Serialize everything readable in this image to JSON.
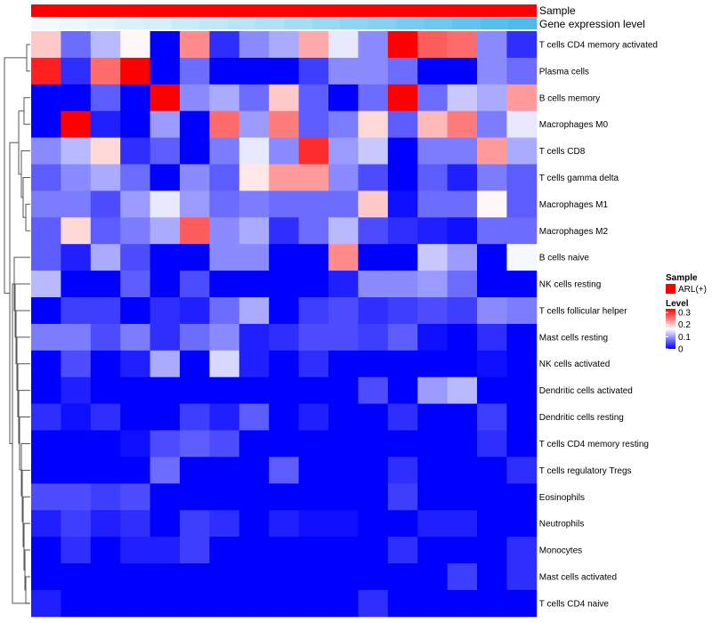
{
  "chart_data": {
    "type": "heatmap",
    "title": "",
    "annotations": {
      "sample_label": "Sample",
      "gene_label": "Gene expression level",
      "sample_color": "#ff0000",
      "gene_colors": [
        "#f2fafd",
        "#ecf8fc",
        "#e4f5fb",
        "#dcf2fa",
        "#d3eff9",
        "#caecf8",
        "#c1e8f7",
        "#b7e5f6",
        "#aee1f5",
        "#a4ddf4",
        "#99d9f3",
        "#8fd5f2",
        "#84d1f1",
        "#79ccef",
        "#6ec8ee",
        "#63c3ec",
        "#58bfeb",
        "#4dbaea"
      ]
    },
    "rows": [
      "T cells CD4 memory activated",
      "Plasma cells",
      "B cells memory",
      "Macrophages M0",
      "T cells CD8",
      "T cells gamma delta",
      "Macrophages M1",
      "Macrophages M2",
      "B cells naive",
      "NK cells resting",
      "T cells follicular helper",
      "Mast cells resting",
      "NK cells activated",
      "Dendritic cells activated",
      "Dendritic cells resting",
      "T cells CD4 memory resting",
      "T cells regulatory  Tregs",
      "Eosinophils",
      "Neutrophils",
      "Monocytes",
      "Mast cells activated",
      "T cells CD4 naive"
    ],
    "values": [
      [
        0.2,
        0.07,
        0.12,
        0.17,
        0.0,
        0.24,
        0.03,
        0.09,
        0.11,
        0.22,
        0.15,
        0.09,
        0.33,
        0.27,
        0.26,
        0.09,
        0.03
      ],
      [
        0.31,
        0.03,
        0.26,
        0.33,
        0.0,
        0.07,
        0.0,
        0.0,
        0.0,
        0.04,
        0.09,
        0.09,
        0.07,
        0.0,
        0.0,
        0.09,
        0.07
      ],
      [
        0.0,
        0.0,
        0.06,
        0.0,
        0.33,
        0.09,
        0.11,
        0.07,
        0.2,
        0.06,
        0.0,
        0.07,
        0.33,
        0.07,
        0.13,
        0.11,
        0.23
      ],
      [
        0.0,
        0.33,
        0.02,
        0.0,
        0.1,
        0.0,
        0.26,
        0.1,
        0.25,
        0.06,
        0.08,
        0.19,
        0.06,
        0.21,
        0.25,
        0.08,
        0.15
      ],
      [
        0.09,
        0.12,
        0.19,
        0.03,
        0.06,
        0.0,
        0.08,
        0.15,
        0.09,
        0.3,
        0.1,
        0.13,
        0.0,
        0.08,
        0.08,
        0.23,
        0.11
      ],
      [
        0.06,
        0.09,
        0.11,
        0.07,
        0.0,
        0.09,
        0.06,
        0.18,
        0.23,
        0.23,
        0.09,
        0.05,
        0.0,
        0.06,
        0.02,
        0.08,
        0.06
      ],
      [
        0.08,
        0.08,
        0.05,
        0.1,
        0.15,
        0.1,
        0.07,
        0.08,
        0.07,
        0.07,
        0.07,
        0.2,
        0.01,
        0.07,
        0.07,
        0.17,
        0.06
      ],
      [
        0.06,
        0.19,
        0.06,
        0.08,
        0.11,
        0.27,
        0.09,
        0.11,
        0.03,
        0.07,
        0.12,
        0.05,
        0.03,
        0.02,
        0.01,
        0.07,
        0.07
      ],
      [
        0.06,
        0.02,
        0.11,
        0.05,
        0.0,
        0.0,
        0.09,
        0.09,
        0.0,
        0.0,
        0.24,
        0.0,
        0.0,
        0.13,
        0.1,
        0.0,
        0.16
      ],
      [
        0.12,
        0.0,
        0.0,
        0.06,
        0.0,
        0.05,
        0.0,
        0.0,
        0.0,
        0.0,
        0.02,
        0.09,
        0.09,
        0.1,
        0.07,
        0.0,
        0.0
      ],
      [
        0.0,
        0.04,
        0.04,
        0.0,
        0.03,
        0.02,
        0.07,
        0.11,
        0.0,
        0.04,
        0.05,
        0.03,
        0.04,
        0.05,
        0.04,
        0.09,
        0.08
      ],
      [
        0.08,
        0.08,
        0.05,
        0.08,
        0.03,
        0.07,
        0.09,
        0.02,
        0.03,
        0.05,
        0.05,
        0.04,
        0.06,
        0.01,
        0.0,
        0.03,
        0.0
      ],
      [
        0.0,
        0.05,
        0.0,
        0.02,
        0.11,
        0.0,
        0.14,
        0.02,
        0.0,
        0.03,
        0.0,
        0.0,
        0.0,
        0.0,
        0.0,
        0.01,
        0.0
      ],
      [
        0.0,
        0.02,
        0.0,
        0.0,
        0.0,
        0.0,
        0.0,
        0.0,
        0.0,
        0.0,
        0.0,
        0.05,
        0.0,
        0.1,
        0.12,
        0.0,
        0.0
      ],
      [
        0.03,
        0.01,
        0.03,
        0.0,
        0.0,
        0.04,
        0.02,
        0.06,
        0.0,
        0.02,
        0.0,
        0.0,
        0.03,
        0.0,
        0.0,
        0.04,
        0.0
      ],
      [
        0.0,
        0.0,
        0.0,
        0.01,
        0.05,
        0.06,
        0.05,
        0.0,
        0.0,
        0.0,
        0.0,
        0.0,
        0.0,
        0.0,
        0.0,
        0.03,
        0.0
      ],
      [
        0.0,
        0.0,
        0.0,
        0.0,
        0.07,
        0.0,
        0.0,
        0.0,
        0.06,
        0.0,
        0.0,
        0.0,
        0.03,
        0.0,
        0.0,
        0.0,
        0.03
      ],
      [
        0.05,
        0.05,
        0.04,
        0.05,
        0.0,
        0.0,
        0.0,
        0.0,
        0.0,
        0.0,
        0.0,
        0.0,
        0.04,
        0.0,
        0.0,
        0.0,
        0.0
      ],
      [
        0.02,
        0.04,
        0.02,
        0.03,
        0.0,
        0.04,
        0.03,
        0.0,
        0.02,
        0.01,
        0.01,
        0.0,
        0.0,
        0.02,
        0.02,
        0.0,
        0.0
      ],
      [
        0.0,
        0.03,
        0.0,
        0.02,
        0.02,
        0.04,
        0.0,
        0.0,
        0.0,
        0.0,
        0.0,
        0.0,
        0.03,
        0.0,
        0.0,
        0.0,
        0.03
      ],
      [
        0.0,
        0.0,
        0.0,
        0.0,
        0.0,
        0.0,
        0.0,
        0.0,
        0.0,
        0.0,
        0.0,
        0.0,
        0.0,
        0.0,
        0.04,
        0.0,
        0.03
      ],
      [
        0.02,
        0.0,
        0.0,
        0.0,
        0.0,
        0.0,
        0.0,
        0.0,
        0.0,
        0.0,
        0.0,
        0.03,
        0.0,
        0.0,
        0.0,
        0.0,
        0.0
      ]
    ],
    "color_scale": {
      "low": "#0000ff",
      "mid": "#ffffff",
      "high": "#ff0000",
      "min": 0,
      "mid_value": 0.165,
      "max": 0.33
    },
    "legend": {
      "sample_title": "Sample",
      "sample_entry": "ARL(+)",
      "level_title": "Level",
      "ticks": [
        "0.3",
        "0.2",
        "0.1",
        "0"
      ],
      "tick_values": [
        0.3,
        0.2,
        0.1,
        0
      ]
    }
  }
}
